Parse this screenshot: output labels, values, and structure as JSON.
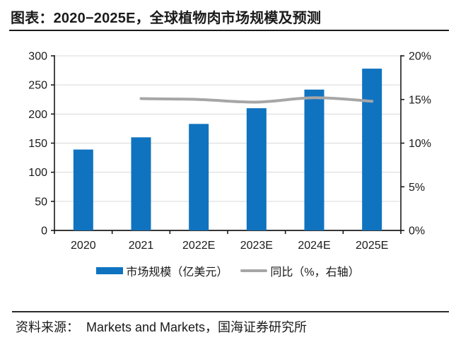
{
  "header": {
    "title": "图表：2020−2025E，全球植物肉市场规模及预测"
  },
  "footer": {
    "source_label": "资料来源：",
    "source_text": "Markets and Markets，国海证券研究所"
  },
  "colors": {
    "bar": "#0f73c0",
    "line": "#a6a6a6",
    "grid": "#d9d9d9",
    "axis": "#1a1a1a",
    "text": "#1a1a1a"
  },
  "chart_data": {
    "type": "bar",
    "subtype": "bar-with-line-overlay",
    "categories": [
      "2020",
      "2021",
      "2022E",
      "2023E",
      "2024E",
      "2025E"
    ],
    "series": [
      {
        "name": "市场规模（亿美元）",
        "type": "bar",
        "axis": "left",
        "color": "#0f73c0",
        "values": [
          139,
          160,
          183,
          210,
          242,
          278
        ]
      },
      {
        "name": "同比（%，右轴）",
        "type": "line",
        "axis": "right",
        "color": "#a6a6a6",
        "values": [
          null,
          15.1,
          15.0,
          14.7,
          15.2,
          14.8
        ]
      }
    ],
    "left_axis": {
      "min": 0,
      "max": 300,
      "step": 50,
      "ticks": [
        "0",
        "50",
        "100",
        "150",
        "200",
        "250",
        "300"
      ]
    },
    "right_axis": {
      "min": 0,
      "max": 20,
      "step": 5,
      "ticks": [
        "0%",
        "5%",
        "10%",
        "15%",
        "20%"
      ]
    },
    "grid": true,
    "legend_position": "bottom",
    "title": "图表：2020−2025E，全球植物肉市场规模及预测",
    "xlabel": "",
    "ylabel_left": "亿美元",
    "ylabel_right": "%"
  }
}
